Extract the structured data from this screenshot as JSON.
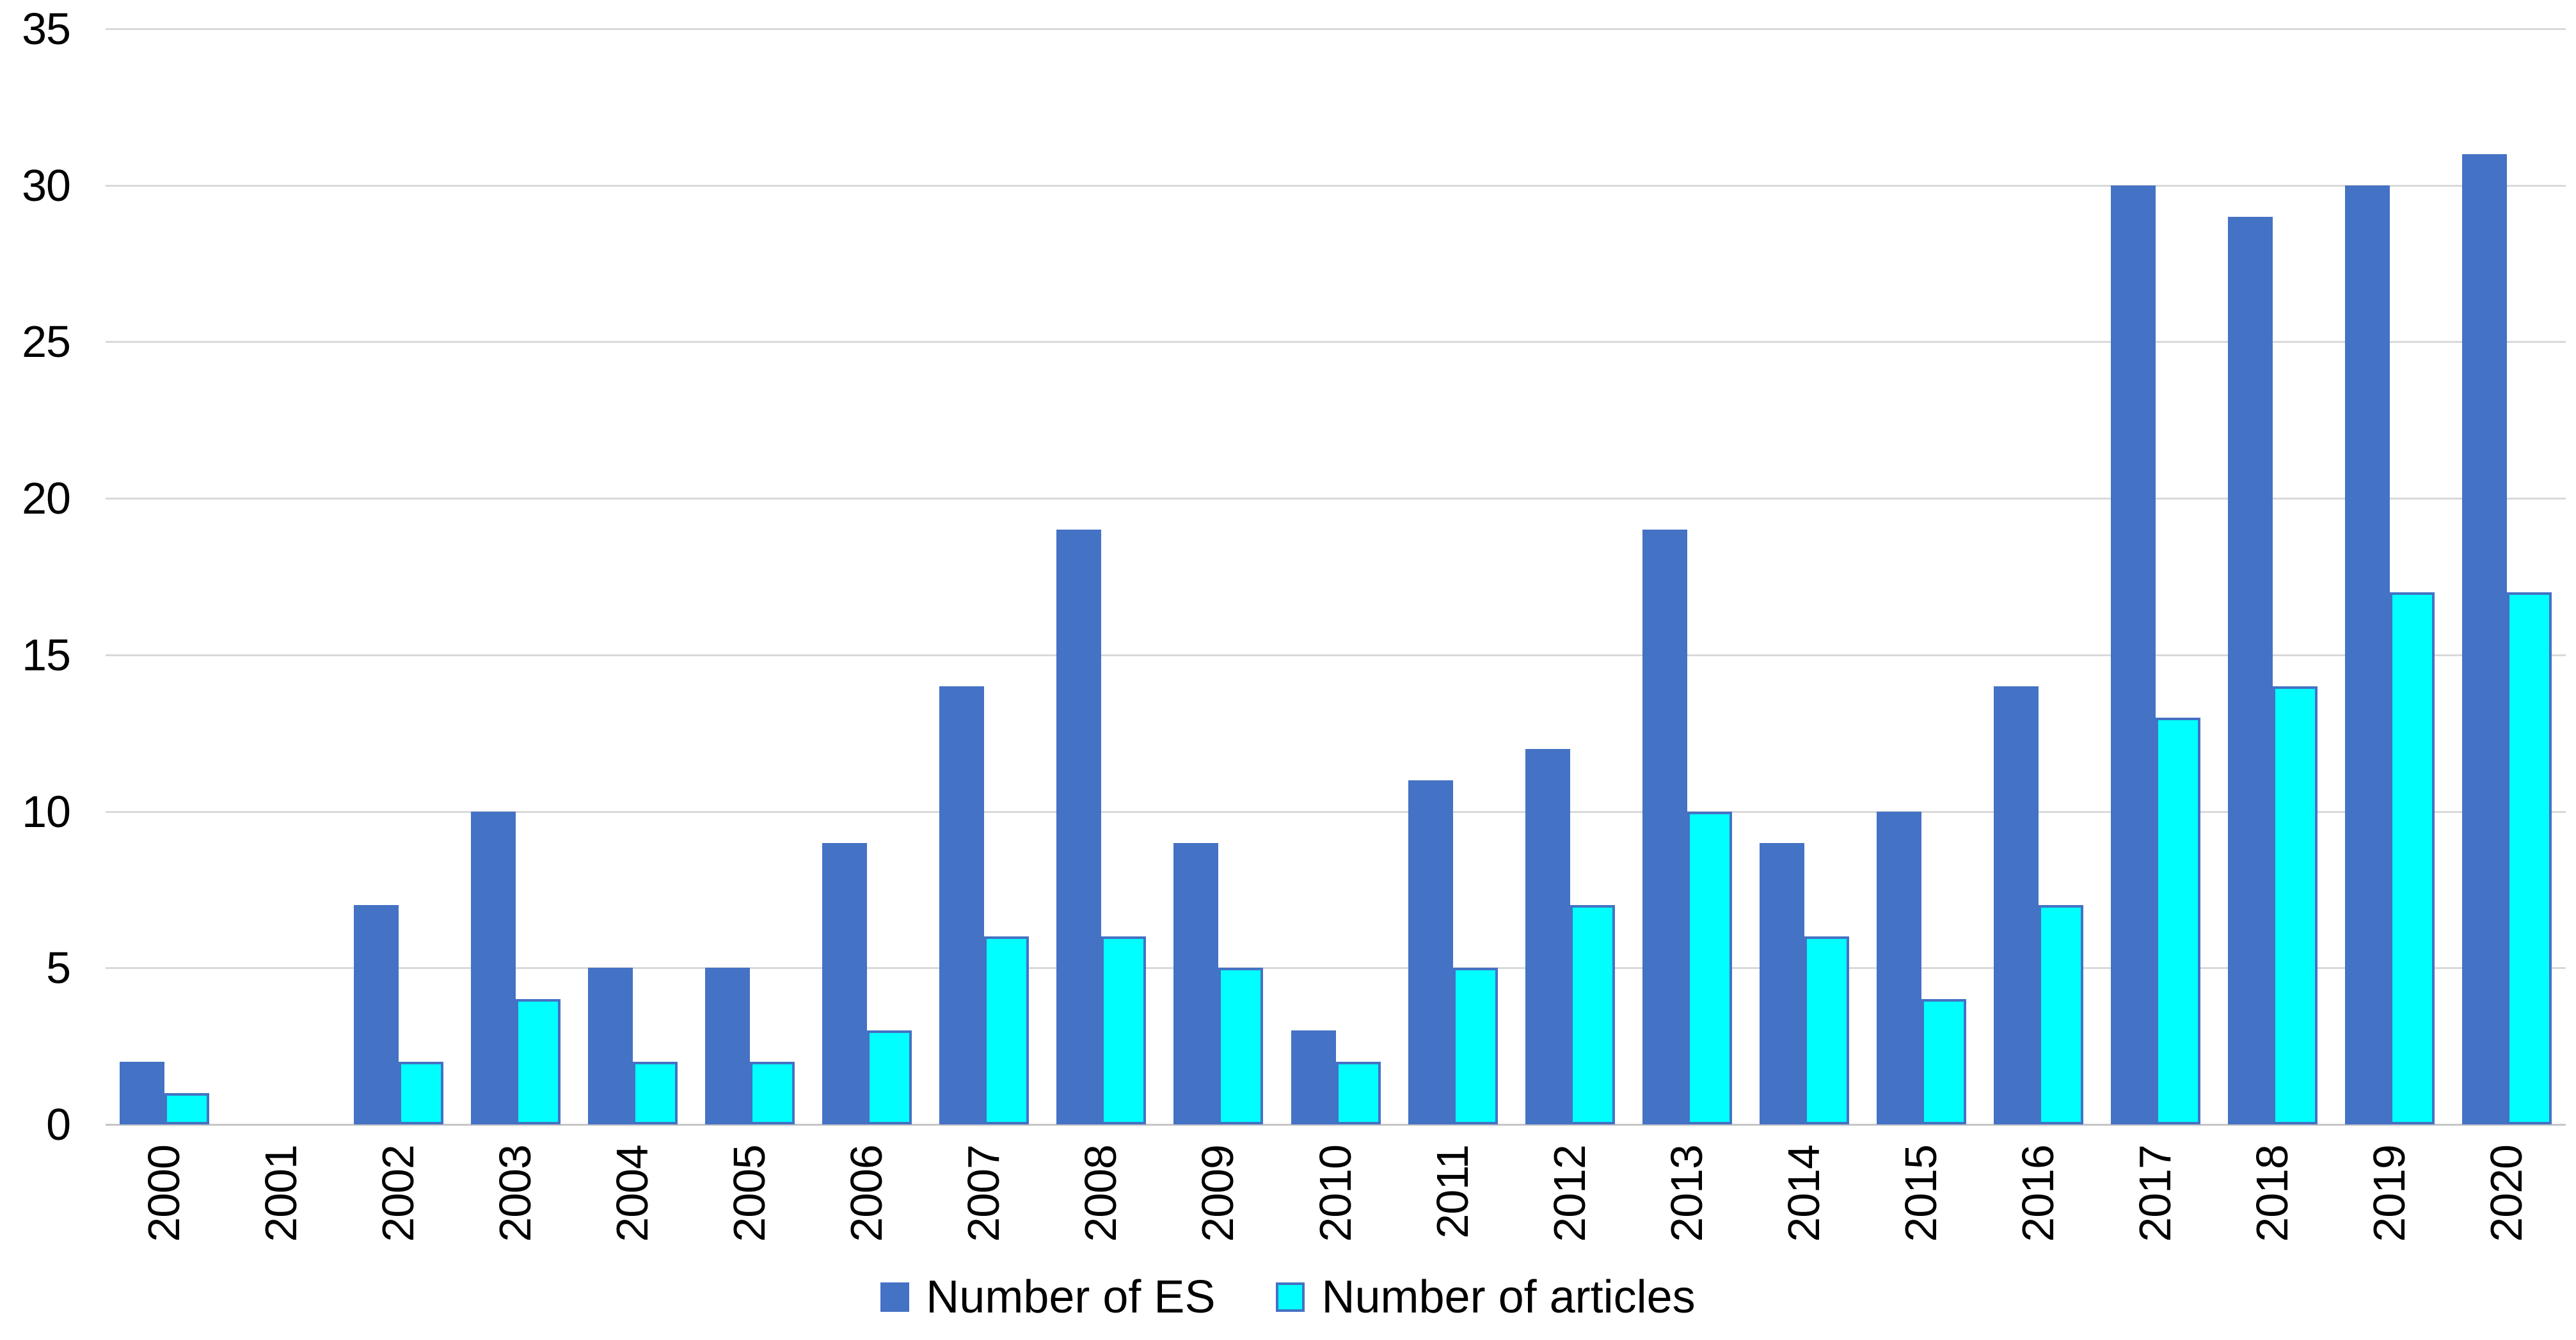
{
  "chart_data": {
    "type": "bar",
    "title": "",
    "xlabel": "",
    "ylabel": "",
    "categories": [
      "2000",
      "2001",
      "2002",
      "2003",
      "2004",
      "2005",
      "2006",
      "2007",
      "2008",
      "2009",
      "2010",
      "2011",
      "2012",
      "2013",
      "2014",
      "2015",
      "2016",
      "2017",
      "2018",
      "2019",
      "2020"
    ],
    "series": [
      {
        "name": "Number of ES",
        "key": "es",
        "color": "#4472C4",
        "values": [
          2,
          0,
          7,
          10,
          5,
          5,
          9,
          14,
          19,
          9,
          3,
          11,
          12,
          19,
          9,
          10,
          14,
          30,
          29,
          30,
          31
        ]
      },
      {
        "name": "Number of articles",
        "key": "articles",
        "color": "#00FFFF",
        "border_color": "#4472C4",
        "values": [
          1,
          0,
          2,
          4,
          2,
          2,
          3,
          6,
          6,
          5,
          2,
          5,
          7,
          10,
          6,
          4,
          7,
          13,
          14,
          17,
          17
        ]
      }
    ],
    "ylim": [
      0,
      35
    ],
    "y_ticks": [
      "0",
      "5",
      "10",
      "15",
      "20",
      "25",
      "30",
      "35"
    ],
    "grid": true,
    "legend_position": "bottom",
    "gridline_color": "#D9D9D9",
    "text_color": "#000000"
  }
}
